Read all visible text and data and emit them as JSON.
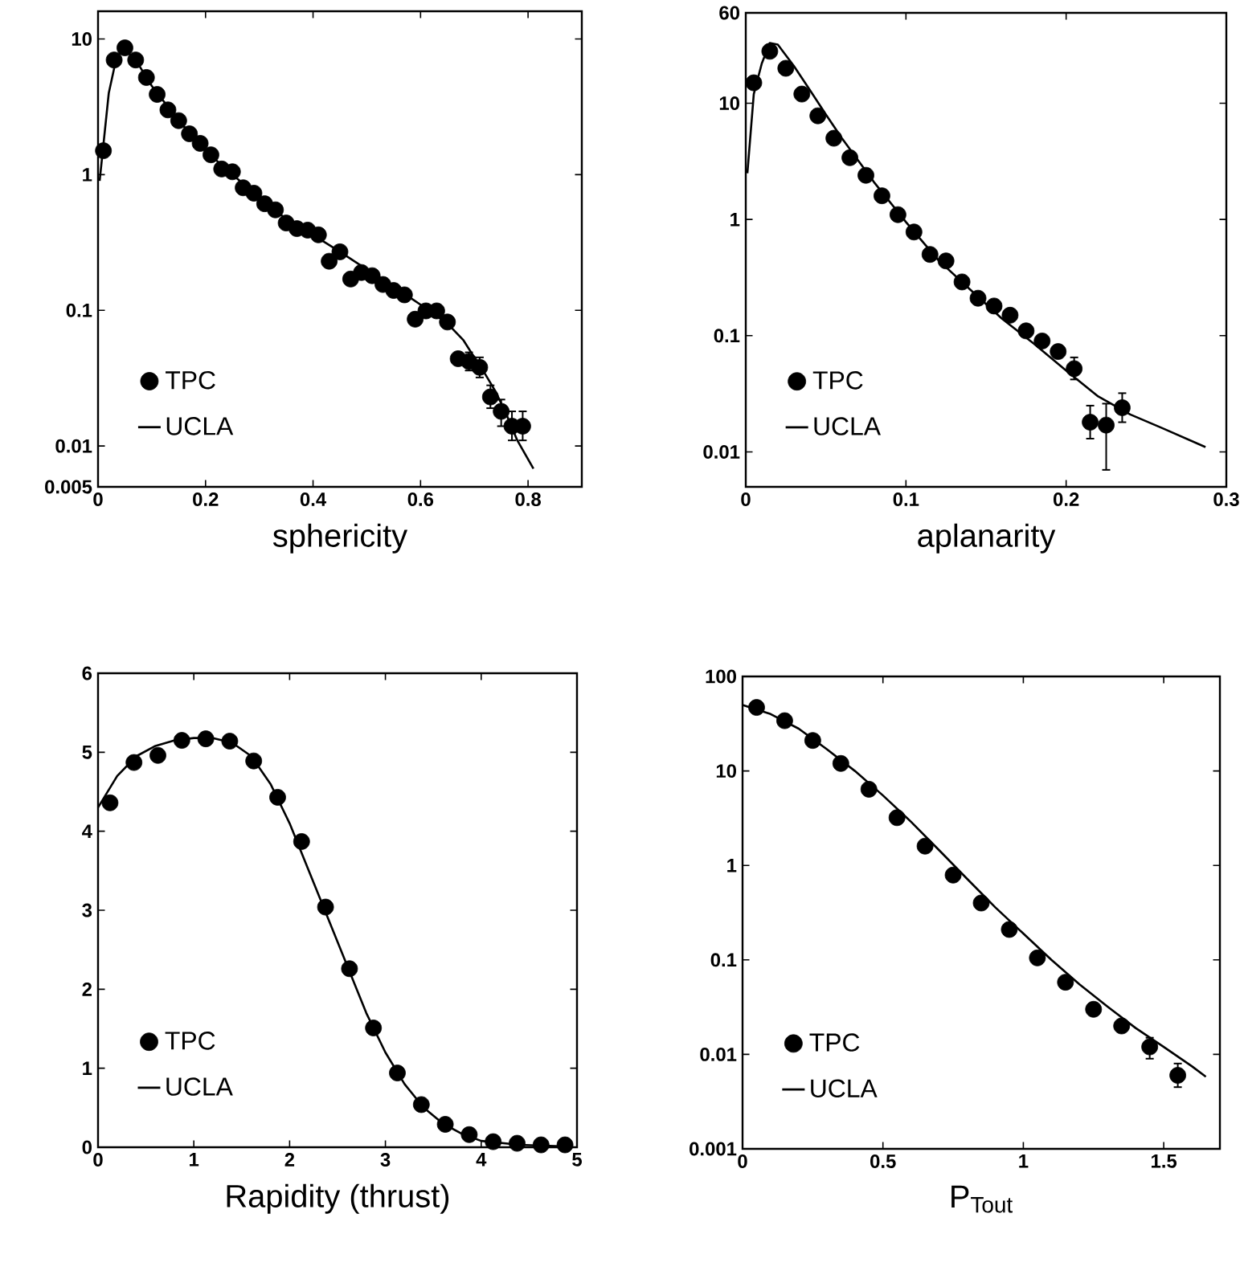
{
  "chart_data": [
    {
      "type": "scatter",
      "xlabel": "sphericity",
      "log": "y",
      "legend": "bottom left",
      "xlim": [
        0,
        0.9
      ],
      "ylim": [
        0.005,
        16
      ],
      "xticks": [
        0,
        0.2,
        0.4,
        0.6,
        0.8
      ],
      "yticks": [
        0.005,
        0.01,
        0.1,
        1,
        10
      ],
      "series": [
        {
          "name": "TPC",
          "type": "scatter",
          "marker": "circle",
          "color": "#000000",
          "x": [
            0.01,
            0.03,
            0.05,
            0.07,
            0.09,
            0.11,
            0.13,
            0.15,
            0.17,
            0.19,
            0.21,
            0.23,
            0.25,
            0.27,
            0.29,
            0.31,
            0.33,
            0.35,
            0.37,
            0.39,
            0.41,
            0.43,
            0.45,
            0.47,
            0.49,
            0.51,
            0.53,
            0.55,
            0.57,
            0.59,
            0.61,
            0.63,
            0.65,
            0.67,
            0.69,
            0.71,
            0.73,
            0.75,
            0.77,
            0.79
          ],
          "values": [
            1.5,
            7.0,
            8.6,
            7.0,
            5.2,
            3.9,
            3.0,
            2.5,
            2.0,
            1.7,
            1.4,
            1.1,
            1.05,
            0.8,
            0.73,
            0.61,
            0.55,
            0.44,
            0.4,
            0.39,
            0.36,
            0.23,
            0.27,
            0.17,
            0.19,
            0.18,
            0.155,
            0.14,
            0.13,
            0.086,
            0.099,
            0.099,
            0.082,
            0.044,
            0.042,
            0.038,
            0.023,
            0.018,
            0.014,
            0.014
          ],
          "errors": [
            null,
            null,
            null,
            null,
            null,
            null,
            null,
            null,
            null,
            null,
            null,
            null,
            null,
            null,
            null,
            null,
            null,
            null,
            null,
            null,
            null,
            null,
            null,
            null,
            null,
            null,
            null,
            null,
            null,
            null,
            null,
            null,
            null,
            null,
            [
              0.036,
              0.049
            ],
            [
              0.032,
              0.045
            ],
            [
              0.019,
              0.028
            ],
            [
              0.014,
              0.022
            ],
            [
              0.011,
              0.018
            ],
            [
              0.011,
              0.018
            ]
          ]
        },
        {
          "name": "UCLA",
          "type": "line",
          "color": "#000000",
          "x": [
            0.003,
            0.02,
            0.035,
            0.05,
            0.07,
            0.1,
            0.15,
            0.2,
            0.25,
            0.3,
            0.35,
            0.4,
            0.45,
            0.5,
            0.55,
            0.6,
            0.65,
            0.68,
            0.7,
            0.72,
            0.74,
            0.76,
            0.78,
            0.81
          ],
          "values": [
            0.9,
            4,
            7.5,
            8.3,
            7,
            4.5,
            2.5,
            1.5,
            1.0,
            0.68,
            0.47,
            0.36,
            0.27,
            0.2,
            0.15,
            0.11,
            0.08,
            0.06,
            0.045,
            0.034,
            0.025,
            0.017,
            0.011,
            0.0068
          ]
        }
      ]
    },
    {
      "type": "scatter",
      "xlabel": "aplanarity",
      "log": "y",
      "legend": "bottom left",
      "xlim": [
        0,
        0.3
      ],
      "ylim": [
        0.005,
        60
      ],
      "xticks": [
        0,
        0.1,
        0.2,
        0.3
      ],
      "yticks": [
        0.01,
        0.1,
        1,
        10,
        60
      ],
      "series": [
        {
          "name": "TPC",
          "type": "scatter",
          "marker": "circle",
          "color": "#000000",
          "x": [
            0.005,
            0.015,
            0.025,
            0.035,
            0.045,
            0.055,
            0.065,
            0.075,
            0.085,
            0.095,
            0.105,
            0.115,
            0.125,
            0.135,
            0.145,
            0.155,
            0.165,
            0.175,
            0.185,
            0.195,
            0.205,
            0.215,
            0.225,
            0.235
          ],
          "values": [
            15,
            28,
            20,
            12,
            7.8,
            5.0,
            3.4,
            2.4,
            1.6,
            1.1,
            0.78,
            0.5,
            0.44,
            0.29,
            0.21,
            0.18,
            0.15,
            0.11,
            0.09,
            0.073,
            0.052,
            0.018,
            0.017,
            0.024
          ],
          "errors": [
            null,
            null,
            null,
            null,
            null,
            null,
            null,
            null,
            null,
            null,
            null,
            null,
            null,
            null,
            null,
            null,
            null,
            null,
            null,
            null,
            [
              0.042,
              0.065
            ],
            [
              0.013,
              0.025
            ],
            [
              0.007,
              0.026
            ],
            [
              0.018,
              0.032
            ]
          ]
        },
        {
          "name": "UCLA",
          "type": "line",
          "color": "#000000",
          "x": [
            0.001,
            0.005,
            0.01,
            0.015,
            0.02,
            0.03,
            0.04,
            0.05,
            0.06,
            0.08,
            0.1,
            0.12,
            0.14,
            0.16,
            0.18,
            0.2,
            0.22,
            0.24,
            0.26,
            0.287
          ],
          "values": [
            2.5,
            12,
            22,
            33,
            32,
            21,
            13,
            8,
            5,
            2.1,
            0.95,
            0.45,
            0.25,
            0.14,
            0.085,
            0.05,
            0.03,
            0.021,
            0.016,
            0.011
          ]
        }
      ]
    },
    {
      "type": "scatter",
      "xlabel": "Rapidity (thrust)",
      "legend": "bottom left",
      "xlim": [
        0,
        5
      ],
      "ylim": [
        0,
        6
      ],
      "xticks": [
        0,
        1,
        2,
        3,
        4,
        5
      ],
      "yticks": [
        0,
        1,
        2,
        3,
        4,
        5,
        6
      ],
      "series": [
        {
          "name": "TPC",
          "type": "scatter",
          "marker": "circle",
          "color": "#000000",
          "x": [
            0.125,
            0.375,
            0.625,
            0.875,
            1.125,
            1.375,
            1.625,
            1.875,
            2.125,
            2.375,
            2.625,
            2.875,
            3.125,
            3.375,
            3.625,
            3.875,
            4.125,
            4.375,
            4.625,
            4.875
          ],
          "values": [
            4.36,
            4.87,
            4.96,
            5.15,
            5.17,
            5.14,
            4.89,
            4.43,
            3.87,
            3.04,
            2.26,
            1.51,
            0.94,
            0.54,
            0.29,
            0.16,
            0.07,
            0.05,
            0.03,
            0.03
          ]
        },
        {
          "name": "UCLA",
          "type": "line",
          "color": "#000000",
          "x": [
            0,
            0.2,
            0.4,
            0.6,
            0.8,
            1.0,
            1.2,
            1.4,
            1.6,
            1.8,
            2.0,
            2.2,
            2.4,
            2.6,
            2.8,
            3.0,
            3.2,
            3.4,
            3.6,
            3.8,
            4.0,
            4.4,
            4.9
          ],
          "values": [
            4.3,
            4.7,
            4.95,
            5.08,
            5.15,
            5.18,
            5.18,
            5.12,
            4.95,
            4.6,
            4.1,
            3.5,
            2.9,
            2.3,
            1.7,
            1.2,
            0.8,
            0.5,
            0.3,
            0.17,
            0.08,
            0.03,
            0.01
          ]
        }
      ]
    },
    {
      "type": "scatter",
      "xlabel": "P$_{Tout}$",
      "log": "y",
      "legend": "bottom left",
      "xlim": [
        0,
        1.7
      ],
      "ylim": [
        0.001,
        100
      ],
      "xticks": [
        0,
        0.5,
        1,
        1.5
      ],
      "yticks": [
        0.001,
        0.01,
        0.1,
        1,
        10,
        100
      ],
      "series": [
        {
          "name": "TPC",
          "type": "scatter",
          "marker": "circle",
          "color": "#000000",
          "x": [
            0.05,
            0.15,
            0.25,
            0.35,
            0.45,
            0.55,
            0.65,
            0.75,
            0.85,
            0.95,
            1.05,
            1.15,
            1.25,
            1.35,
            1.45,
            1.55
          ],
          "values": [
            47,
            34,
            21,
            12,
            6.4,
            3.2,
            1.6,
            0.79,
            0.4,
            0.21,
            0.105,
            0.058,
            0.03,
            0.02,
            0.012,
            0.006
          ],
          "errors": [
            null,
            null,
            null,
            null,
            null,
            null,
            null,
            null,
            null,
            null,
            null,
            null,
            null,
            null,
            [
              0.009,
              0.015
            ],
            [
              0.0045,
              0.008
            ]
          ]
        },
        {
          "name": "UCLA",
          "type": "line",
          "color": "#000000",
          "x": [
            0,
            0.1,
            0.2,
            0.3,
            0.4,
            0.5,
            0.6,
            0.7,
            0.8,
            0.9,
            1.0,
            1.1,
            1.2,
            1.3,
            1.4,
            1.5,
            1.6,
            1.65
          ],
          "values": [
            50,
            40,
            28,
            17,
            10,
            5.5,
            2.9,
            1.45,
            0.72,
            0.36,
            0.19,
            0.1,
            0.055,
            0.032,
            0.019,
            0.012,
            0.0075,
            0.0058
          ]
        }
      ]
    }
  ]
}
